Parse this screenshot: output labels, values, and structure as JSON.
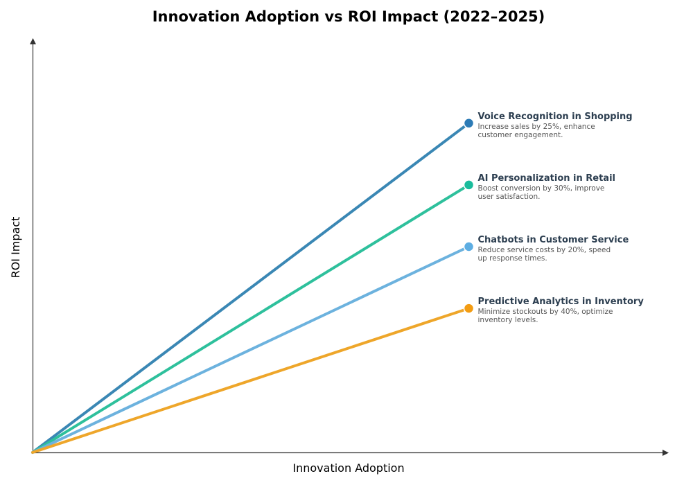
{
  "chart_data": {
    "type": "line",
    "title": "Innovation Adoption vs ROI Impact (2022–2025)",
    "xlabel": "Innovation Adoption",
    "ylabel": "ROI Impact",
    "grid": false,
    "legend": "none",
    "series": [
      {
        "name": "Voice Recognition in Shopping",
        "description_lines": [
          "Increase sales by 25%, enhance",
          "customer engagement."
        ],
        "points": [
          [
            0,
            0
          ],
          [
            0.688,
            0.8
          ]
        ],
        "color": "#2c7bb6",
        "line_color": "#3a87b4"
      },
      {
        "name": "AI Personalization in Retail",
        "description_lines": [
          "Boost conversion by 30%, improve",
          "user satisfaction."
        ],
        "points": [
          [
            0,
            0
          ],
          [
            0.688,
            0.65
          ]
        ],
        "color": "#1abc9c",
        "line_color": "#2ec09c"
      },
      {
        "name": "Chatbots in Customer Service",
        "description_lines": [
          "Reduce service costs by 20%, speed",
          "up response times."
        ],
        "points": [
          [
            0,
            0
          ],
          [
            0.688,
            0.5
          ]
        ],
        "color": "#5dade2",
        "line_color": "#6cb2de"
      },
      {
        "name": "Predictive Analytics in Inventory",
        "description_lines": [
          "Minimize stockouts by 40%, optimize",
          "inventory levels."
        ],
        "points": [
          [
            0,
            0
          ],
          [
            0.688,
            0.35
          ]
        ],
        "color": "#f39c12",
        "line_color": "#eea62a"
      }
    ]
  }
}
